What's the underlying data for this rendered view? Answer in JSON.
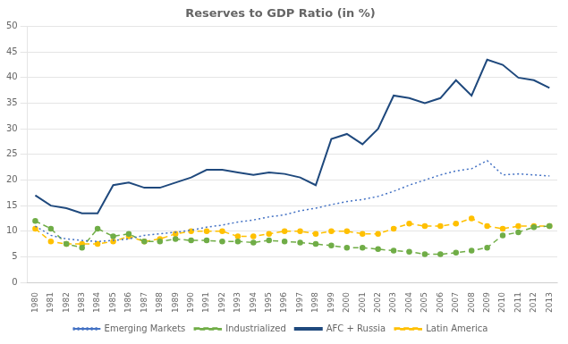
{
  "chart_data": {
    "type": "line",
    "title": "Reserves to GDP Ratio (in %)",
    "x": [
      1980,
      1981,
      1982,
      1983,
      1984,
      1985,
      1986,
      1987,
      1988,
      1989,
      1990,
      1991,
      1992,
      1993,
      1994,
      1995,
      1996,
      1997,
      1998,
      1999,
      2000,
      2001,
      2002,
      2003,
      2004,
      2005,
      2006,
      2007,
      2008,
      2009,
      2010,
      2011,
      2012,
      2013
    ],
    "series": [
      {
        "name": "Emerging Markets",
        "color": "#4472c4",
        "line_style": "dotted",
        "marker": "none",
        "values": [
          11.0,
          9.2,
          8.5,
          8.2,
          8.0,
          8.2,
          8.5,
          9.2,
          9.5,
          9.8,
          10.2,
          10.8,
          11.2,
          11.8,
          12.2,
          12.8,
          13.2,
          14.0,
          14.5,
          15.2,
          15.8,
          16.2,
          16.8,
          17.8,
          19.0,
          20.0,
          21.0,
          21.8,
          22.2,
          23.8,
          21.0,
          21.2,
          21.0,
          20.8
        ]
      },
      {
        "name": "Industrialized",
        "color": "#70ad47",
        "line_style": "dashed",
        "marker": "circle",
        "values": [
          12.0,
          10.5,
          7.5,
          6.8,
          10.5,
          9.0,
          9.5,
          8.0,
          8.0,
          8.5,
          8.2,
          8.2,
          8.0,
          8.0,
          7.8,
          8.2,
          8.0,
          7.8,
          7.5,
          7.2,
          6.8,
          6.8,
          6.5,
          6.2,
          6.0,
          5.5,
          5.5,
          5.8,
          6.2,
          6.8,
          9.2,
          9.8,
          10.8,
          11.0
        ]
      },
      {
        "name": "AFC + Russia",
        "color": "#1f497d",
        "line_style": "solid",
        "marker": "none",
        "values": [
          17.0,
          15.0,
          14.5,
          13.5,
          13.5,
          19.0,
          19.5,
          18.5,
          18.5,
          19.5,
          20.5,
          22.0,
          22.0,
          21.5,
          21.0,
          21.5,
          21.2,
          20.5,
          19.0,
          28.0,
          29.0,
          27.0,
          30.0,
          36.5,
          36.0,
          35.0,
          36.0,
          39.5,
          36.5,
          43.5,
          42.5,
          40.0,
          39.5,
          38.0
        ]
      },
      {
        "name": "Latin America",
        "color": "#ffc000",
        "line_style": "dashed",
        "marker": "circle",
        "values": [
          10.5,
          8.0,
          7.5,
          7.5,
          7.5,
          8.0,
          9.0,
          8.0,
          8.5,
          9.5,
          10.0,
          10.0,
          10.0,
          9.0,
          9.0,
          9.5,
          10.0,
          10.0,
          9.5,
          10.0,
          10.0,
          9.5,
          9.5,
          10.5,
          11.5,
          11.0,
          11.0,
          11.5,
          12.5,
          11.0,
          10.5,
          11.0,
          11.0,
          11.0
        ]
      }
    ],
    "xlim": [
      1979.5,
      2013.5
    ],
    "xticks": [
      1980,
      1981,
      1982,
      1983,
      1984,
      1985,
      1986,
      1987,
      1988,
      1989,
      1990,
      1991,
      1992,
      1993,
      1994,
      1995,
      1996,
      1997,
      1998,
      1999,
      2000,
      2001,
      2002,
      2003,
      2004,
      2005,
      2006,
      2007,
      2008,
      2009,
      2010,
      2011,
      2012,
      2013
    ],
    "ylim": [
      0,
      50
    ],
    "yticks": [
      0,
      5,
      10,
      15,
      20,
      25,
      30,
      35,
      40,
      45,
      50
    ],
    "grid": "y",
    "legend": "bottom"
  }
}
